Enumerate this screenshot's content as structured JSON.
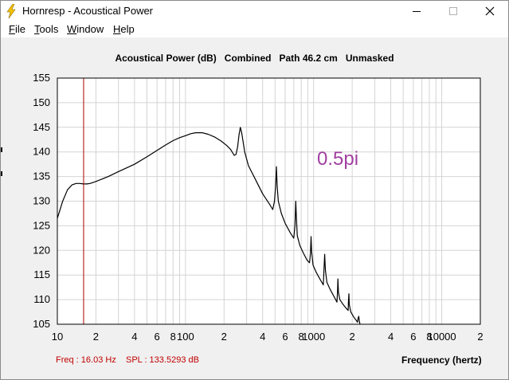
{
  "window": {
    "title": "Hornresp - Acoustical Power",
    "app_icon": "lightning-icon",
    "controls": [
      "minimize-icon",
      "maximize-icon",
      "close-icon"
    ]
  },
  "menu": {
    "items": [
      {
        "label": "File",
        "hotkey": "F",
        "rest": "ile"
      },
      {
        "label": "Tools",
        "hotkey": "T",
        "rest": "ools"
      },
      {
        "label": "Window",
        "hotkey": "W",
        "rest": "indow"
      },
      {
        "label": "Help",
        "hotkey": "H",
        "rest": "elp"
      }
    ]
  },
  "chart_data": {
    "type": "line",
    "title": "Acoustical Power (dB)   Combined   Path 46.2 cm   Unmasked",
    "xlabel": "Frequency (hertz)",
    "ylabel": "",
    "x_scale": "log",
    "xlim": [
      10,
      20000
    ],
    "ylim": [
      105,
      155
    ],
    "y_ticks": [
      155,
      150,
      145,
      140,
      135,
      130,
      125,
      120,
      115,
      110,
      105
    ],
    "x_tick_labels": [
      {
        "x": 10,
        "label": "10"
      },
      {
        "x": 20,
        "label": "2"
      },
      {
        "x": 40,
        "label": "4"
      },
      {
        "x": 60,
        "label": "6"
      },
      {
        "x": 80,
        "label": "8"
      },
      {
        "x": 100,
        "label": "100"
      },
      {
        "x": 200,
        "label": "2"
      },
      {
        "x": 400,
        "label": "4"
      },
      {
        "x": 600,
        "label": "6"
      },
      {
        "x": 800,
        "label": "8"
      },
      {
        "x": 1000,
        "label": "1000"
      },
      {
        "x": 2000,
        "label": "2"
      },
      {
        "x": 4000,
        "label": "4"
      },
      {
        "x": 6000,
        "label": "6"
      },
      {
        "x": 8000,
        "label": "8"
      },
      {
        "x": 10000,
        "label": "10000"
      },
      {
        "x": 20000,
        "label": "2"
      }
    ],
    "grid": true,
    "cursor": {
      "x": 16.03,
      "color": "#b00000"
    },
    "readout": {
      "freq": "Freq : 16.03 Hz",
      "spl": "SPL : 133.5293 dB"
    },
    "annotation": "0.5pi",
    "series": [
      {
        "color": "#000000",
        "points": [
          [
            10,
            126.5
          ],
          [
            11,
            130
          ],
          [
            12,
            132.3
          ],
          [
            13,
            133.3
          ],
          [
            14,
            133.6
          ],
          [
            15,
            133.6
          ],
          [
            16,
            133.5
          ],
          [
            17,
            133.5
          ],
          [
            18,
            133.6
          ],
          [
            20,
            134
          ],
          [
            25,
            135
          ],
          [
            30,
            136
          ],
          [
            40,
            137.5
          ],
          [
            50,
            139
          ],
          [
            60,
            140.3
          ],
          [
            70,
            141.4
          ],
          [
            80,
            142.3
          ],
          [
            90,
            142.9
          ],
          [
            100,
            143.3
          ],
          [
            110,
            143.7
          ],
          [
            120,
            143.9
          ],
          [
            135,
            143.9
          ],
          [
            150,
            143.6
          ],
          [
            170,
            143
          ],
          [
            190,
            142.2
          ],
          [
            210,
            141.3
          ],
          [
            225,
            140.5
          ],
          [
            240,
            139.3
          ],
          [
            248,
            139.5
          ],
          [
            255,
            141
          ],
          [
            262,
            143.5
          ],
          [
            268,
            145
          ],
          [
            275,
            143.8
          ],
          [
            290,
            140
          ],
          [
            310,
            137.2
          ],
          [
            350,
            134.5
          ],
          [
            400,
            131.5
          ],
          [
            450,
            129.5
          ],
          [
            480,
            128.3
          ],
          [
            495,
            130
          ],
          [
            505,
            133
          ],
          [
            512,
            137
          ],
          [
            520,
            133
          ],
          [
            530,
            130
          ],
          [
            560,
            127.5
          ],
          [
            600,
            125.5
          ],
          [
            660,
            123.5
          ],
          [
            700,
            122.5
          ],
          [
            715,
            125
          ],
          [
            725,
            130
          ],
          [
            733,
            127
          ],
          [
            745,
            123
          ],
          [
            780,
            121
          ],
          [
            830,
            119.5
          ],
          [
            890,
            118
          ],
          [
            930,
            117.5
          ],
          [
            945,
            119.5
          ],
          [
            955,
            122.8
          ],
          [
            965,
            119.8
          ],
          [
            990,
            117
          ],
          [
            1050,
            115.5
          ],
          [
            1130,
            114
          ],
          [
            1190,
            113
          ],
          [
            1205,
            116
          ],
          [
            1220,
            119.2
          ],
          [
            1235,
            116
          ],
          [
            1270,
            113.5
          ],
          [
            1350,
            112
          ],
          [
            1450,
            110.5
          ],
          [
            1520,
            109.5
          ],
          [
            1535,
            111.5
          ],
          [
            1548,
            114.2
          ],
          [
            1562,
            111.5
          ],
          [
            1600,
            110
          ],
          [
            1700,
            109
          ],
          [
            1800,
            108.2
          ],
          [
            1860,
            107.8
          ],
          [
            1870,
            109.5
          ],
          [
            1885,
            111.2
          ],
          [
            1898,
            109
          ],
          [
            1950,
            107.5
          ],
          [
            2050,
            106.5
          ],
          [
            2150,
            105.8
          ],
          [
            2200,
            105.4
          ],
          [
            2230,
            106.3
          ],
          [
            2250,
            106.6
          ],
          [
            2270,
            105.8
          ],
          [
            2300,
            105
          ]
        ]
      }
    ]
  }
}
